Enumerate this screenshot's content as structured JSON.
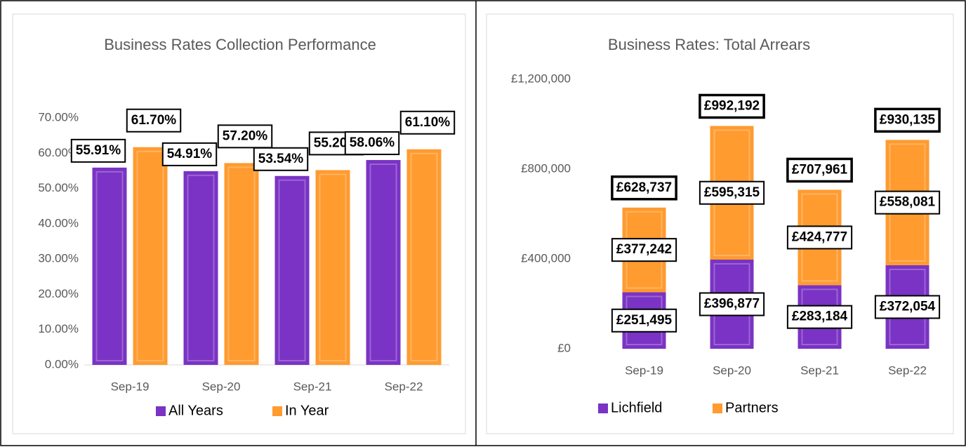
{
  "chart_data": [
    {
      "type": "bar",
      "title": "Business Rates Collection Performance",
      "categories": [
        "Sep-19",
        "Sep-20",
        "Sep-21",
        "Sep-22"
      ],
      "series": [
        {
          "name": "All Years",
          "color": "#7a33c4",
          "values": [
            55.91,
            54.91,
            53.54,
            58.06
          ],
          "value_labels": [
            "55.91%",
            "54.91%",
            "53.54%",
            "58.06%"
          ]
        },
        {
          "name": "In Year",
          "color": "#ff9b2f",
          "values": [
            61.7,
            57.2,
            55.2,
            61.1
          ],
          "value_labels": [
            "61.70%",
            "57.20%",
            "55.20%",
            "61.10%"
          ]
        }
      ],
      "ylim": [
        0,
        70
      ],
      "yticks": [
        {
          "value": 0,
          "label": "0.00%"
        },
        {
          "value": 10,
          "label": "10.00%"
        },
        {
          "value": 20,
          "label": "20.00%"
        },
        {
          "value": 30,
          "label": "30.00%"
        },
        {
          "value": 40,
          "label": "40.00%"
        },
        {
          "value": 50,
          "label": "50.00%"
        },
        {
          "value": 60,
          "label": "60.00%"
        },
        {
          "value": 70,
          "label": "70.00%"
        }
      ]
    },
    {
      "type": "stacked_bar",
      "title": "Business Rates: Total Arrears",
      "categories": [
        "Sep-19",
        "Sep-20",
        "Sep-21",
        "Sep-22"
      ],
      "series": [
        {
          "name": "Lichfield",
          "color": "#7a33c4",
          "values": [
            251495,
            396877,
            283184,
            372054
          ],
          "value_labels": [
            "£251,495",
            "£396,877",
            "£283,184",
            "£372,054"
          ]
        },
        {
          "name": "Partners",
          "color": "#ff9b2f",
          "values": [
            377242,
            595315,
            424777,
            558081
          ],
          "value_labels": [
            "£377,242",
            "£595,315",
            "£424,777",
            "£558,081"
          ]
        }
      ],
      "totals": [
        628737,
        992192,
        707961,
        930135
      ],
      "total_labels": [
        "£628,737",
        "£992,192",
        "£707,961",
        "£930,135"
      ],
      "ylim": [
        0,
        1200000
      ],
      "yticks": [
        {
          "value": 0,
          "label": "£0"
        },
        {
          "value": 400000,
          "label": "£400,000"
        },
        {
          "value": 800000,
          "label": "£800,000"
        },
        {
          "value": 1200000,
          "label": "£1,200,000"
        }
      ]
    }
  ]
}
